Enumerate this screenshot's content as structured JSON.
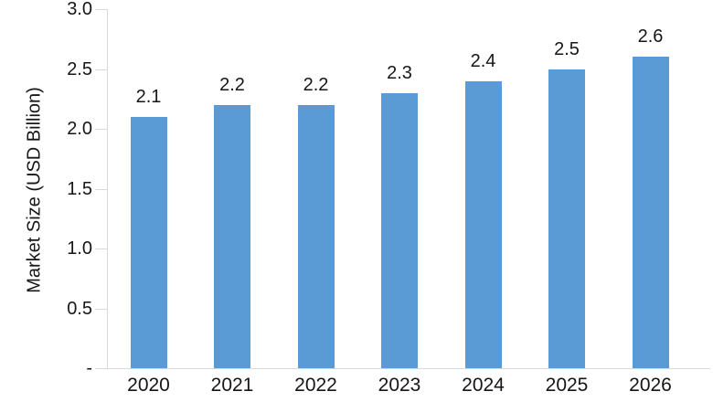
{
  "chart_data": {
    "type": "bar",
    "title": "",
    "xlabel": "",
    "ylabel": "Market Size (USD Billion)",
    "categories": [
      "2020",
      "2021",
      "2022",
      "2023",
      "2024",
      "2025",
      "2026"
    ],
    "values": [
      2.1,
      2.2,
      2.2,
      2.3,
      2.4,
      2.5,
      2.6
    ],
    "data_labels": [
      "2.1",
      "2.2",
      "2.2",
      "2.3",
      "2.4",
      "2.5",
      "2.6"
    ],
    "ylim": [
      0,
      3.0
    ],
    "yticks": [
      {
        "value": 0,
        "label": "-"
      },
      {
        "value": 0.5,
        "label": "0.5"
      },
      {
        "value": 1.0,
        "label": "1.0"
      },
      {
        "value": 1.5,
        "label": "1.5"
      },
      {
        "value": 2.0,
        "label": "2.0"
      },
      {
        "value": 2.5,
        "label": "2.5"
      },
      {
        "value": 3.0,
        "label": "3.0"
      }
    ],
    "grid": false,
    "legend": false,
    "colors": {
      "bar": "#5B9BD5",
      "axis": "#D9D9D9",
      "text": "#161616",
      "background": "#FFFFFF"
    }
  }
}
